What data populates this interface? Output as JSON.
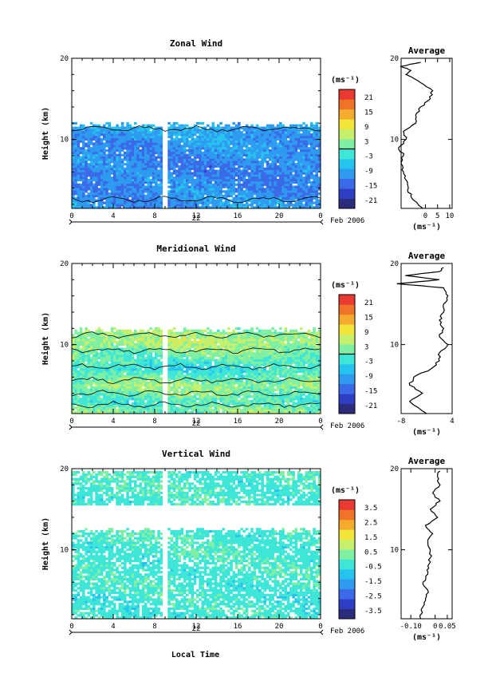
{
  "figure": {
    "time_label": "Local Time",
    "date_label": "Feb 2006"
  },
  "chart_data": [
    {
      "type": "heatmap",
      "title": "Zonal Wind",
      "ylabel": "Height (km)",
      "xlim": [
        0,
        24
      ],
      "ylim": [
        1.5,
        20
      ],
      "x_ticks": [
        "0",
        "4",
        "8",
        "12",
        "16",
        "20",
        "0"
      ],
      "x_tick_values": [
        0,
        4,
        8,
        12,
        16,
        20,
        24
      ],
      "y_ticks": [
        10,
        20
      ],
      "day_label": "22",
      "colorbar_unit": "(ms⁻¹)",
      "colorbar_ticks": [
        "21",
        "15",
        "9",
        "3",
        "-3",
        "-9",
        "-15",
        "-21"
      ],
      "colorbar_range": [
        -24,
        24
      ],
      "colorbar_zero_line": true,
      "color_scale": [
        "#2c2c7c",
        "#2f3fc4",
        "#3a6ae8",
        "#2e9af0",
        "#27c3ef",
        "#3ee6d8",
        "#7ff0a3",
        "#c6f06c",
        "#f3e43a",
        "#f4ab2e",
        "#f07428",
        "#e83a30"
      ],
      "data_gap_hours": [
        8.8,
        9.2
      ],
      "coverage_height_km": [
        1.5,
        11.8
      ],
      "profile_levels_km": [
        1.5,
        6,
        10,
        11.8
      ],
      "profile_values": [
        -10,
        -12,
        -10,
        -8
      ],
      "contour_levels": [
        0
      ],
      "average": {
        "title": "Average",
        "xlabel": "(ms⁻¹)",
        "x_ticks": [
          "0",
          "5",
          "10"
        ],
        "x_tick_values": [
          0,
          5,
          10
        ],
        "xlim": [
          -10,
          11
        ],
        "y_ticks": [
          "10",
          "20"
        ],
        "height_km": [
          1.5,
          3,
          4,
          5,
          6,
          7,
          8,
          9,
          10,
          11,
          12,
          13,
          14,
          15,
          16,
          17,
          18,
          18.5,
          19,
          19.5
        ],
        "values": [
          -1,
          -6,
          -7,
          -8,
          -9,
          -10,
          -9,
          -11,
          -8,
          -9,
          -4,
          -4,
          -2,
          2,
          3,
          -2,
          -8,
          -6,
          -10,
          -2
        ]
      }
    },
    {
      "type": "heatmap",
      "title": "Meridional Wind",
      "ylabel": "Height (km)",
      "xlim": [
        0,
        24
      ],
      "ylim": [
        1.5,
        20
      ],
      "x_ticks": [
        "0",
        "4",
        "8",
        "12",
        "16",
        "20",
        "0"
      ],
      "x_tick_values": [
        0,
        4,
        8,
        12,
        16,
        20,
        24
      ],
      "y_ticks": [
        10,
        20
      ],
      "day_label": "22",
      "colorbar_unit": "(ms⁻¹)",
      "colorbar_ticks": [
        "21",
        "15",
        "9",
        "3",
        "-3",
        "-9",
        "-15",
        "-21"
      ],
      "colorbar_range": [
        -24,
        24
      ],
      "colorbar_zero_line": true,
      "color_scale": [
        "#2c2c7c",
        "#2f3fc4",
        "#3a6ae8",
        "#2e9af0",
        "#27c3ef",
        "#3ee6d8",
        "#7ff0a3",
        "#c6f06c",
        "#f3e43a",
        "#f4ab2e",
        "#f07428",
        "#e83a30"
      ],
      "data_gap_hours": [
        8.8,
        9.2
      ],
      "coverage_height_km": [
        1.5,
        11.8
      ],
      "profile_levels_km": [
        1.5,
        3,
        5,
        7,
        9,
        10.5,
        11.8
      ],
      "profile_values": [
        3,
        -1,
        4,
        -3,
        2,
        5,
        3
      ],
      "contour_levels": [
        0
      ],
      "average": {
        "title": "Average",
        "xlabel": "(ms⁻¹)",
        "x_ticks": [
          "-8",
          "4"
        ],
        "x_tick_values": [
          -8,
          4
        ],
        "xlim": [
          -8,
          4
        ],
        "y_ticks": [
          "10",
          "20"
        ],
        "height_km": [
          1.5,
          3,
          4,
          5,
          6,
          7,
          8,
          9,
          10,
          11,
          12,
          13,
          14,
          15,
          16,
          17,
          17.5,
          18,
          18.5,
          19,
          19.5
        ],
        "values": [
          -2,
          -6,
          -3,
          -6,
          -5,
          -1,
          1,
          1,
          3,
          1,
          2,
          1,
          2,
          2,
          3,
          2,
          -9,
          1,
          -7,
          1,
          2
        ]
      }
    },
    {
      "type": "heatmap",
      "title": "Vertical Wind",
      "ylabel": "Height (km)",
      "xlim": [
        0,
        24
      ],
      "ylim": [
        1.5,
        20
      ],
      "x_ticks": [
        "0",
        "4",
        "8",
        "12",
        "16",
        "20",
        "0"
      ],
      "x_tick_values": [
        0,
        4,
        8,
        12,
        16,
        20,
        24
      ],
      "y_ticks": [
        10,
        20
      ],
      "day_label": "22",
      "colorbar_unit": "(ms⁻¹)",
      "colorbar_ticks": [
        "3.5",
        "2.5",
        "1.5",
        "0.5",
        "-0.5",
        "-1.5",
        "-2.5",
        "-3.5"
      ],
      "colorbar_range": [
        -4,
        4
      ],
      "colorbar_zero_line": false,
      "color_scale": [
        "#2c2c7c",
        "#2f3fc4",
        "#3a6ae8",
        "#2e9af0",
        "#27c3ef",
        "#3ee6d8",
        "#7ff0a3",
        "#c6f06c",
        "#f3e43a",
        "#f4ab2e",
        "#f07428",
        "#e83a30"
      ],
      "data_gap_hours": [
        8.8,
        9.2
      ],
      "coverage_height_km": [
        1.5,
        12.5
      ],
      "upper_band_km": [
        15.5,
        19.8
      ],
      "profile_levels_km": [
        1.5,
        12.5
      ],
      "profile_values": [
        -0.3,
        -0.2
      ],
      "contour_levels": [],
      "average": {
        "title": "Average",
        "xlabel": "(ms⁻¹)",
        "x_ticks": [
          "-0.10",
          "0",
          "0.05"
        ],
        "x_tick_values": [
          -0.1,
          0,
          0.05
        ],
        "xlim": [
          -0.14,
          0.07
        ],
        "y_ticks": [
          "10",
          "20"
        ],
        "height_km": [
          1.5,
          3,
          4,
          5,
          6,
          7,
          8,
          9,
          10,
          11,
          12,
          13,
          14,
          15,
          16,
          17,
          18,
          19,
          19.7
        ],
        "values": [
          -0.06,
          -0.05,
          -0.04,
          -0.03,
          -0.05,
          -0.03,
          -0.03,
          -0.02,
          -0.02,
          -0.03,
          -0.01,
          -0.04,
          0.01,
          -0.02,
          0.02,
          -0.01,
          0.02,
          0.01,
          0.02
        ]
      }
    }
  ]
}
